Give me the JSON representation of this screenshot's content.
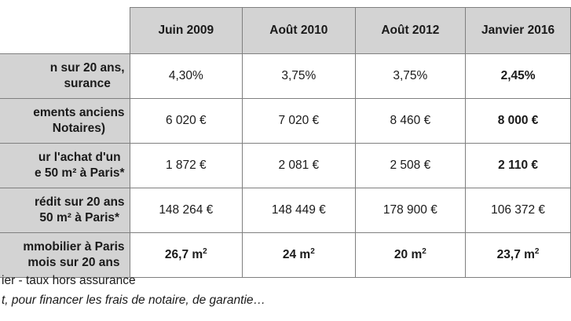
{
  "table": {
    "columns": [
      "Juin 2009",
      "Août 2010",
      "Août 2012",
      "Janvier 2016"
    ],
    "rows": [
      {
        "label_line1": "n sur 20 ans,",
        "label_line2": "surance",
        "values": [
          "4,30%",
          "3,75%",
          "3,75%",
          "2,45%"
        ],
        "sup": "",
        "last_bold": true
      },
      {
        "label_line1": "ements anciens",
        "label_line2": "Notaires)",
        "values": [
          "6 020 €",
          "7 020 €",
          "8 460 €",
          "8 000 €"
        ],
        "sup": "",
        "last_bold": true
      },
      {
        "label_line1": "ur l'achat d'un",
        "label_line2": "e 50 m² à Paris*",
        "values": [
          "1 872 €",
          "2 081 €",
          "2 508 €",
          "2 110 €"
        ],
        "sup": "",
        "last_bold": true
      },
      {
        "label_line1": "rédit sur 20 ans",
        "label_line2": "50 m² à Paris*",
        "values": [
          "148 264 €",
          "148 449 €",
          "178 900 €",
          "106 372 €"
        ],
        "sup": "",
        "last_bold": false
      },
      {
        "label_line1": "mmobilier à Paris",
        "label_line2": "mois sur 20 ans",
        "values": [
          "26,7 m",
          "24 m",
          "20 m",
          "23,7 m"
        ],
        "sup": "2",
        "all_bold": true
      }
    ]
  },
  "footnotes": [
    "ier - taux hors assurance",
    "t, pour financer les frais de notaire, de garantie…"
  ]
}
